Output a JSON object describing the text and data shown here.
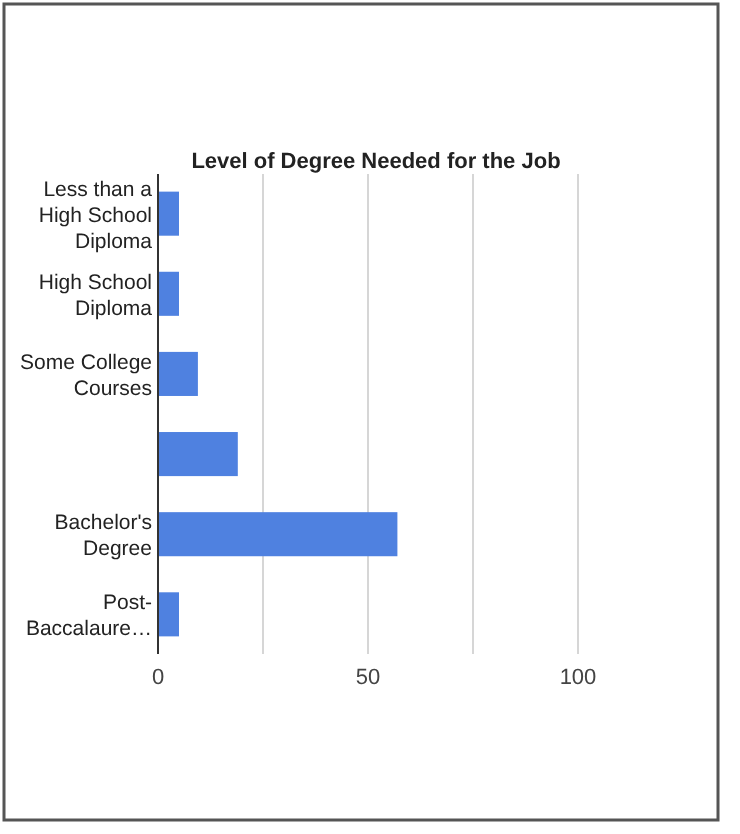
{
  "chart_data": {
    "type": "bar",
    "orientation": "horizontal",
    "title": "Level of Degree Needed for the Job",
    "categories": [
      "Less than a High School Diploma",
      "High School Diploma",
      "Some College Courses",
      null,
      "Bachelor's Degree",
      "Post-Baccalaure…"
    ],
    "values": [
      5,
      5,
      9.5,
      19,
      57,
      5
    ],
    "color": "#4f81e0",
    "xlim": [
      0,
      100
    ],
    "xticks": [
      0,
      {
        "value": 25,
        "label": null
      },
      50,
      {
        "value": 75,
        "label": null
      },
      100
    ],
    "grid": "x"
  }
}
